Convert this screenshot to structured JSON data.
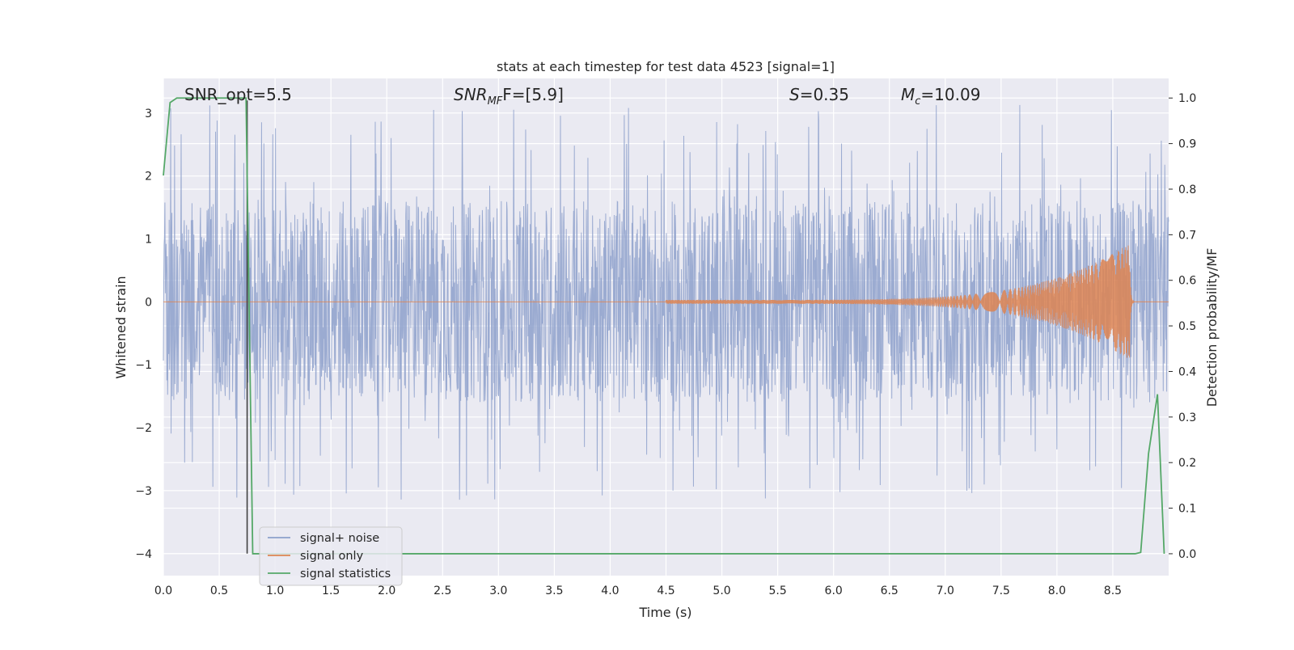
{
  "chart_data": {
    "type": "line",
    "title": "stats at each timestep for test data 4523 [signal=1]",
    "xlabel": "Time (s)",
    "ylabel_left": "Whitened strain",
    "ylabel_right": "Detection probability/MF",
    "xlim": [
      0,
      9
    ],
    "ylim_left": [
      -4.35,
      3.55
    ],
    "ylim_right": [
      -0.048,
      1.043
    ],
    "x_ticks": [
      "0.0",
      "0.5",
      "1.0",
      "1.5",
      "2.0",
      "2.5",
      "3.0",
      "3.5",
      "4.0",
      "4.5",
      "5.0",
      "5.5",
      "6.0",
      "6.5",
      "7.0",
      "7.5",
      "8.0",
      "8.5"
    ],
    "y_ticks_left": [
      "3",
      "2",
      "1",
      "0",
      "−1",
      "−2",
      "−3",
      "−4"
    ],
    "y_ticks_right": [
      "1.0",
      "0.9",
      "0.8",
      "0.7",
      "0.6",
      "0.5",
      "0.4",
      "0.3",
      "0.2",
      "0.1",
      "0.0"
    ],
    "grid": true,
    "legend_placement": "lower-left",
    "annotations": {
      "snr_opt": "SNR_opt=5.5",
      "snr_mf_main": "SNR",
      "snr_mf_sub": "MF",
      "snr_mf_rest": "F=[5.9]",
      "s_main": "S",
      "s_rest": "=0.35",
      "mc_main": "M",
      "mc_sub": "c",
      "mc_rest": "=10.09"
    },
    "series": [
      {
        "name": "signal+ noise",
        "color": "#8da0cb",
        "axis": "left",
        "note_values": "noise-like, amplitude roughly within -1.6 to +1.6 with peaks up to about 3.2 and down to about -3.2",
        "envelope": {
          "x": [
            0,
            9
          ],
          "typical_high": 1.6,
          "typical_low": -1.6,
          "peak_high": 3.15,
          "peak_low": -3.15
        }
      },
      {
        "name": "signal only",
        "color": "#dd8452",
        "axis": "left",
        "chirp": {
          "start_x": 4.5,
          "peak_x": 8.65,
          "peak_amplitude": 0.9,
          "ringdown_end_x": 8.7
        }
      },
      {
        "name": "signal statistics",
        "color": "#55a868",
        "axis": "right",
        "x": [
          0.0,
          0.06,
          0.12,
          0.6,
          0.74,
          0.8,
          0.9,
          2.0,
          5.0,
          8.0,
          8.7,
          8.75,
          8.82,
          8.9,
          8.96
        ],
        "y": [
          0.83,
          0.99,
          1.0,
          1.0,
          1.0,
          0.0,
          0.0,
          0.0,
          0.0,
          0.0,
          0.0,
          0.003,
          0.22,
          0.35,
          0.0
        ]
      }
    ],
    "marker_line": {
      "x": 0.75,
      "color": "#404040"
    }
  }
}
